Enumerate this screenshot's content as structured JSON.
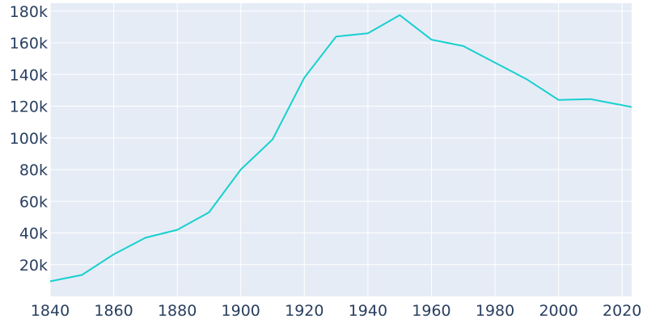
{
  "chart_data": {
    "type": "line",
    "title": "",
    "xlabel": "",
    "ylabel": "",
    "xlim": [
      1840,
      2023
    ],
    "ylim": [
      0,
      185000
    ],
    "grid": true,
    "colors": {
      "plot_background": "#e5ecf6",
      "grid": "#ffffff",
      "line": "#17d0ce",
      "tick_text": "#2a3f5f"
    },
    "x_ticks": [
      1840,
      1860,
      1880,
      1900,
      1920,
      1940,
      1960,
      1980,
      2000,
      2020
    ],
    "x_tick_labels": [
      "1840",
      "1860",
      "1880",
      "1900",
      "1920",
      "1940",
      "1960",
      "1980",
      "2000",
      "2020"
    ],
    "y_ticks": [
      20000,
      40000,
      60000,
      80000,
      100000,
      120000,
      140000,
      160000,
      180000
    ],
    "y_tick_labels": [
      "20k",
      "40k",
      "60k",
      "80k",
      "100k",
      "120k",
      "140k",
      "160k",
      "180k"
    ],
    "series": [
      {
        "color": "#17d0ce",
        "x": [
          1840,
          1850,
          1860,
          1870,
          1880,
          1890,
          1900,
          1910,
          1920,
          1930,
          1940,
          1950,
          1960,
          1970,
          1980,
          1990,
          2000,
          2010,
          2023
        ],
        "values": [
          9500,
          13500,
          26500,
          37000,
          42000,
          53000,
          80000,
          99000,
          138000,
          164000,
          166000,
          177500,
          162000,
          158000,
          147500,
          137000,
          124000,
          124500,
          119500
        ]
      }
    ]
  }
}
